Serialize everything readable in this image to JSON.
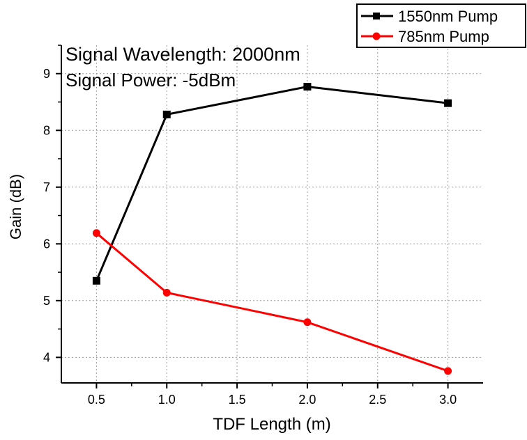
{
  "chart_data": {
    "type": "line",
    "xlabel": "TDF Length (m)",
    "ylabel": "Gain (dB)",
    "xlim": [
      0.25,
      3.25
    ],
    "ylim": [
      3.55,
      9.5
    ],
    "x_ticks": [
      0.5,
      1.0,
      1.5,
      2.0,
      2.5,
      3.0
    ],
    "x_tick_labels": [
      "0.5",
      "1.0",
      "1.5",
      "2.0",
      "2.5",
      "3.0"
    ],
    "y_ticks": [
      4,
      5,
      6,
      7,
      8,
      9
    ],
    "y_tick_labels": [
      "4",
      "5",
      "6",
      "7",
      "8",
      "9"
    ],
    "grid": true,
    "legend_position": "top-right",
    "annotations": [
      "Signal Wavelength: 2000nm",
      "Signal Power: -5dBm"
    ],
    "series": [
      {
        "name": "1550nm Pump",
        "color": "#000000",
        "marker": "square",
        "x": [
          0.5,
          1.0,
          2.0,
          3.0
        ],
        "y": [
          5.35,
          8.28,
          8.77,
          8.48
        ]
      },
      {
        "name": "785nm Pump",
        "color": "#ff0000",
        "marker": "circle",
        "x": [
          0.5,
          1.0,
          2.0,
          3.0
        ],
        "y": [
          6.19,
          5.14,
          4.62,
          3.76
        ]
      }
    ]
  }
}
